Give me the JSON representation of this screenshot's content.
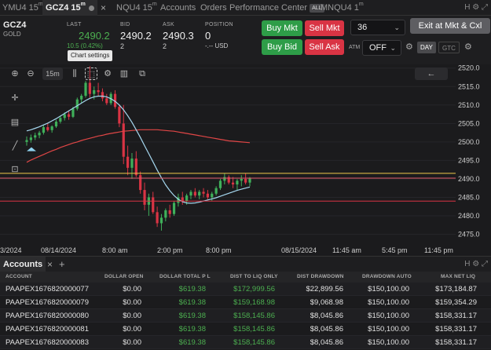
{
  "tabs": [
    {
      "label": "YMU4 15",
      "sup": "m"
    },
    {
      "label": "GCZ4 15",
      "sup": "m"
    },
    {
      "label": "NQU4 15",
      "sup": "m"
    },
    {
      "label": "Accounts",
      "sup": ""
    },
    {
      "label": "Orders",
      "sup": ""
    },
    {
      "label": "Performance Center",
      "sup": ""
    },
    {
      "label": "MNQU4 1",
      "sup": "m"
    }
  ],
  "all_badge": "ALL",
  "close_glyph": "×",
  "top_icons": "H ⚙ ⤢",
  "quote": {
    "symbol": "GCZ4",
    "description": "GOLD",
    "last_label": "LAST",
    "last_value": "2490.2",
    "last_change": "10.5 (0.42%)",
    "bid_label": "BID",
    "bid_value": "2490.2",
    "bid_size": "2",
    "ask_label": "ASK",
    "ask_value": "2490.3",
    "ask_size": "2",
    "position_label": "POSITION",
    "position_value": "0",
    "position_pnl": "-.-- USD"
  },
  "buttons": {
    "buy_mkt": "Buy Mkt",
    "sell_mkt": "Sell Mkt",
    "buy_bid": "Buy Bid",
    "sell_ask": "Sell Ask",
    "exit": "Exit at Mkt & Cxl"
  },
  "quantity": {
    "value": "36"
  },
  "atm": {
    "label": "ATM",
    "value": "OFF"
  },
  "tif": {
    "day": "DAY",
    "gtc": "GTC"
  },
  "tooltip": "Chart settings",
  "timeframe": "15m",
  "back_arrow": "←",
  "chart_data": {
    "type": "candlestick",
    "y_ticks": [
      "2520.0",
      "2515.0",
      "2510.0",
      "2505.0",
      "2500.0",
      "2495.0",
      "2490.0",
      "2485.0",
      "2480.0",
      "2475.0"
    ],
    "ylim": [
      2473,
      2521
    ],
    "x_ticks": [
      "3/2024",
      "08/14/2024",
      "8:00 am",
      "2:00 pm",
      "8:00 pm",
      "08/15/2024",
      "11:45 am",
      "5:45 pm",
      "11:45 pm"
    ],
    "price_labels": [
      {
        "value": "2491.5",
        "color": "#f2c94c"
      },
      {
        "value": "2490.2",
        "color": "#e05a6a"
      },
      {
        "value": "2484.0",
        "color": "#d93444"
      }
    ],
    "candles": [
      [
        2500.0,
        2501.5,
        2499.0,
        2500.5
      ],
      [
        2500.5,
        2502.0,
        2499.8,
        2501.2
      ],
      [
        2501.2,
        2502.5,
        2500.5,
        2501.8
      ],
      [
        2501.8,
        2503.0,
        2501.0,
        2502.5
      ],
      [
        2502.5,
        2504.5,
        2502.0,
        2504.0
      ],
      [
        2504.0,
        2505.0,
        2502.8,
        2503.2
      ],
      [
        2503.2,
        2504.5,
        2502.5,
        2504.2
      ],
      [
        2504.2,
        2506.0,
        2503.8,
        2505.5
      ],
      [
        2505.5,
        2507.0,
        2505.0,
        2506.5
      ],
      [
        2506.5,
        2508.0,
        2505.8,
        2507.5
      ],
      [
        2507.5,
        2508.5,
        2506.0,
        2506.8
      ],
      [
        2506.8,
        2509.5,
        2506.5,
        2509.0
      ],
      [
        2509.0,
        2512.0,
        2508.5,
        2511.5
      ],
      [
        2511.5,
        2513.0,
        2510.5,
        2512.5
      ],
      [
        2512.5,
        2516.5,
        2512.0,
        2516.0
      ],
      [
        2516.0,
        2520.5,
        2512.0,
        2513.0
      ],
      [
        2513.0,
        2515.0,
        2511.5,
        2514.0
      ],
      [
        2514.0,
        2516.0,
        2512.5,
        2513.5
      ],
      [
        2513.5,
        2514.5,
        2511.0,
        2511.8
      ],
      [
        2511.8,
        2513.0,
        2510.0,
        2510.5
      ],
      [
        2510.5,
        2513.5,
        2510.0,
        2513.0
      ],
      [
        2513.0,
        2514.0,
        2509.0,
        2509.5
      ],
      [
        2509.5,
        2510.0,
        2504.0,
        2505.0
      ],
      [
        2505.0,
        2510.0,
        2494.0,
        2496.0
      ],
      [
        2496.0,
        2499.0,
        2491.0,
        2493.0
      ],
      [
        2493.0,
        2497.0,
        2490.0,
        2495.5
      ],
      [
        2495.5,
        2497.5,
        2490.5,
        2491.0
      ],
      [
        2491.0,
        2492.0,
        2486.0,
        2487.0
      ],
      [
        2487.0,
        2489.0,
        2481.5,
        2483.0
      ],
      [
        2483.0,
        2486.0,
        2480.0,
        2485.0
      ],
      [
        2485.0,
        2486.5,
        2480.5,
        2481.0
      ],
      [
        2481.0,
        2482.5,
        2477.0,
        2478.0
      ],
      [
        2478.0,
        2480.5,
        2476.0,
        2479.5
      ],
      [
        2479.5,
        2482.0,
        2478.5,
        2481.5
      ],
      [
        2481.5,
        2483.0,
        2479.5,
        2480.5
      ],
      [
        2480.5,
        2484.0,
        2480.0,
        2483.5
      ],
      [
        2483.5,
        2486.0,
        2482.5,
        2485.0
      ],
      [
        2485.0,
        2486.5,
        2483.0,
        2484.0
      ],
      [
        2484.0,
        2486.0,
        2483.0,
        2485.5
      ],
      [
        2485.5,
        2487.0,
        2484.5,
        2486.5
      ],
      [
        2486.5,
        2487.5,
        2485.0,
        2485.5
      ],
      [
        2485.5,
        2487.0,
        2484.5,
        2486.5
      ],
      [
        2486.5,
        2487.5,
        2485.0,
        2486.0
      ],
      [
        2486.0,
        2487.0,
        2484.5,
        2485.0
      ],
      [
        2485.0,
        2486.5,
        2484.0,
        2486.0
      ],
      [
        2486.0,
        2488.0,
        2485.5,
        2487.5
      ],
      [
        2487.5,
        2490.0,
        2487.0,
        2489.5
      ],
      [
        2489.5,
        2491.5,
        2488.5,
        2490.5
      ],
      [
        2490.5,
        2491.0,
        2488.5,
        2489.0
      ],
      [
        2489.0,
        2490.5,
        2487.5,
        2488.5
      ],
      [
        2488.5,
        2490.0,
        2487.0,
        2489.5
      ],
      [
        2489.5,
        2491.0,
        2488.0,
        2490.0
      ],
      [
        2490.0,
        2491.5,
        2488.5,
        2489.0
      ],
      [
        2489.0,
        2490.5,
        2488.0,
        2490.2
      ]
    ],
    "ma_fast": [
      2503.0,
      2503.3,
      2503.7,
      2504.1,
      2504.6,
      2505.1,
      2505.7,
      2506.3,
      2507.0,
      2507.7,
      2508.4,
      2509.1,
      2509.8,
      2510.5,
      2511.2,
      2511.8,
      2512.2,
      2512.4,
      2512.4,
      2512.2,
      2511.7,
      2511.0,
      2510.0,
      2508.7,
      2507.1,
      2505.3,
      2503.3,
      2501.2,
      2499.0,
      2496.8,
      2494.6,
      2492.4,
      2490.3,
      2488.4,
      2486.8,
      2485.5,
      2484.5,
      2483.8,
      2483.5,
      2483.4,
      2483.5,
      2483.7,
      2484.0,
      2484.3,
      2484.6,
      2484.9,
      2485.3,
      2485.7,
      2486.1,
      2486.5,
      2486.9,
      2487.2,
      2487.5,
      2487.8
    ],
    "ma_slow": [
      2494.5,
      2495.1,
      2495.6,
      2496.1,
      2496.6,
      2497.1,
      2497.6,
      2498.0,
      2498.5,
      2498.9,
      2499.3,
      2499.7,
      2500.0,
      2500.4,
      2500.7,
      2501.0,
      2501.3,
      2501.6,
      2501.8,
      2502.1,
      2502.3,
      2502.5,
      2502.7,
      2502.9,
      2503.0,
      2503.1,
      2503.2,
      2503.3,
      2503.3,
      2503.3,
      2503.3,
      2503.3,
      2503.2,
      2503.1,
      2503.0,
      2502.9,
      2502.7,
      2502.5,
      2502.3,
      2502.1,
      2501.9,
      2501.7,
      2501.5,
      2501.3,
      2501.1,
      2500.9,
      2500.7,
      2500.5,
      2500.3,
      2500.2,
      2500.1,
      2500.0,
      2499.9,
      2499.8
    ]
  },
  "accounts": {
    "title": "Accounts",
    "add": "+",
    "header_icons": "H ⚙ ⤢",
    "columns": [
      "ACCOUNT",
      "DOLLAR OPEN",
      "DOLLAR TOTAL P L",
      "DIST TO LIQ ONLY",
      "DIST DRAWDOWN",
      "DRAWDOWN AUTO",
      "MAX NET LIQ"
    ],
    "rows": [
      [
        "PAAPEX1676820000077",
        "$0.00",
        "$619.38",
        "$172,999.56",
        "$22,899.56",
        "$150,100.00",
        "$173,184.87"
      ],
      [
        "PAAPEX1676820000079",
        "$0.00",
        "$619.38",
        "$159,168.98",
        "$9,068.98",
        "$150,100.00",
        "$159,354.29"
      ],
      [
        "PAAPEX1676820000080",
        "$0.00",
        "$619.38",
        "$158,145.86",
        "$8,045.86",
        "$150,100.00",
        "$158,331.17"
      ],
      [
        "PAAPEX1676820000081",
        "$0.00",
        "$619.38",
        "$158,145.86",
        "$8,045.86",
        "$150,100.00",
        "$158,331.17"
      ],
      [
        "PAAPEX1676820000083",
        "$0.00",
        "$619.38",
        "$158,145.86",
        "$8,045.86",
        "$150,100.00",
        "$158,331.17"
      ]
    ]
  }
}
